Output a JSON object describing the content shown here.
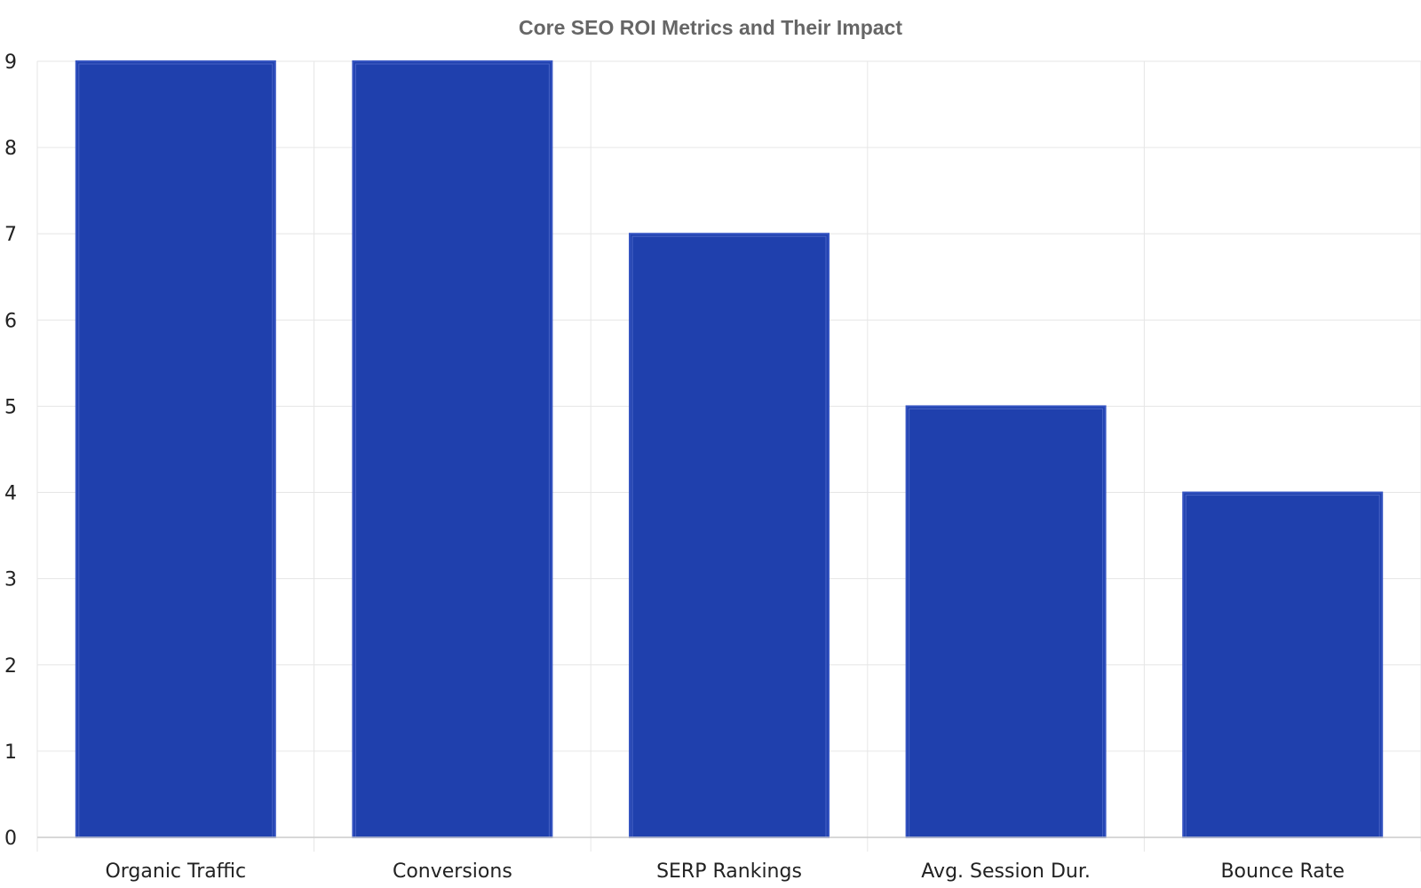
{
  "chart_data": {
    "type": "bar",
    "title": "Core SEO ROI Metrics and Their Impact",
    "xlabel": "",
    "ylabel": "",
    "categories": [
      "Organic Traffic",
      "Conversions",
      "SERP Rankings",
      "Avg. Session Dur.",
      "Bounce Rate"
    ],
    "values": [
      9,
      9,
      7,
      5,
      4
    ],
    "ylim": [
      0,
      9
    ],
    "yticks": [
      0,
      1,
      2,
      3,
      4,
      5,
      6,
      7,
      8,
      9
    ],
    "grid": true,
    "legend": "none"
  },
  "colors": {
    "bar_fill": "#1f40ad",
    "bar_stroke": "#3655c2",
    "bar_inner_stroke": "#5a74d0",
    "grid": "#e6e6e6",
    "axis": "#cccccc",
    "title": "#666666",
    "tick_text": "#222222"
  }
}
